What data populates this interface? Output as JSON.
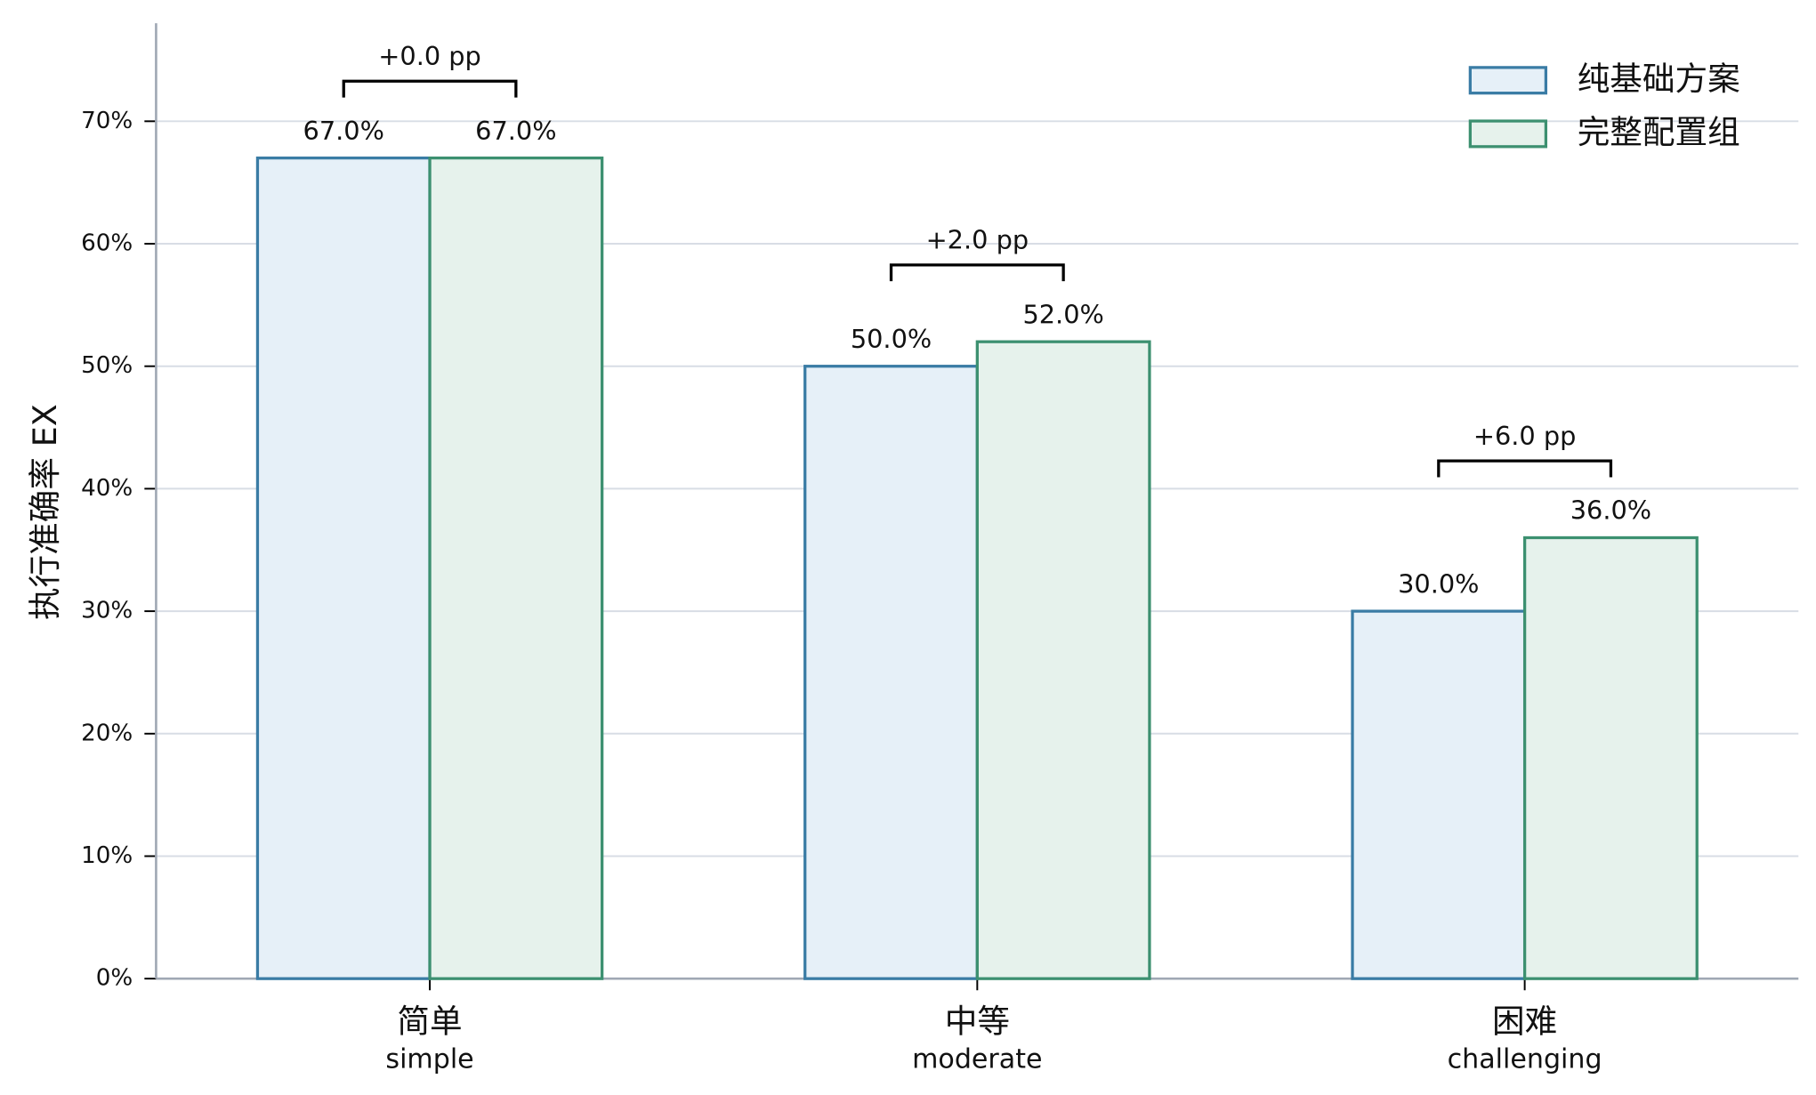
{
  "chart_data": {
    "type": "bar",
    "y_label": "执行准确率 EX",
    "categories": [
      "简单",
      "中等",
      "困难"
    ],
    "category_subtitles": [
      "simple",
      "moderate",
      "challenging"
    ],
    "series": [
      {
        "name": "纯基础方案",
        "color": "#3a7ca5",
        "fill": "#e6f0f8",
        "values": [
          67,
          50,
          30
        ],
        "value_labels": [
          "67.0%",
          "50.0%",
          "30.0%"
        ]
      },
      {
        "name": "完整配置组",
        "color": "#3c9070",
        "fill": "#e6f2ec",
        "values": [
          67,
          52,
          36
        ],
        "value_labels": [
          "67.0%",
          "52.0%",
          "36.0%"
        ]
      }
    ],
    "difference_labels": [
      "+0.0 pp",
      "+2.0 pp",
      "+6.0 pp"
    ],
    "ylim": [
      0,
      78
    ],
    "yticks": [
      {
        "value": 0,
        "label": "0%"
      },
      {
        "value": 10,
        "label": "10%"
      },
      {
        "value": 20,
        "label": "20%"
      },
      {
        "value": 30,
        "label": "30%"
      },
      {
        "value": 40,
        "label": "40%"
      },
      {
        "value": 50,
        "label": "50%"
      },
      {
        "value": 60,
        "label": "60%"
      },
      {
        "value": 70,
        "label": "70%"
      }
    ],
    "grid": true,
    "legend": "upper right"
  }
}
